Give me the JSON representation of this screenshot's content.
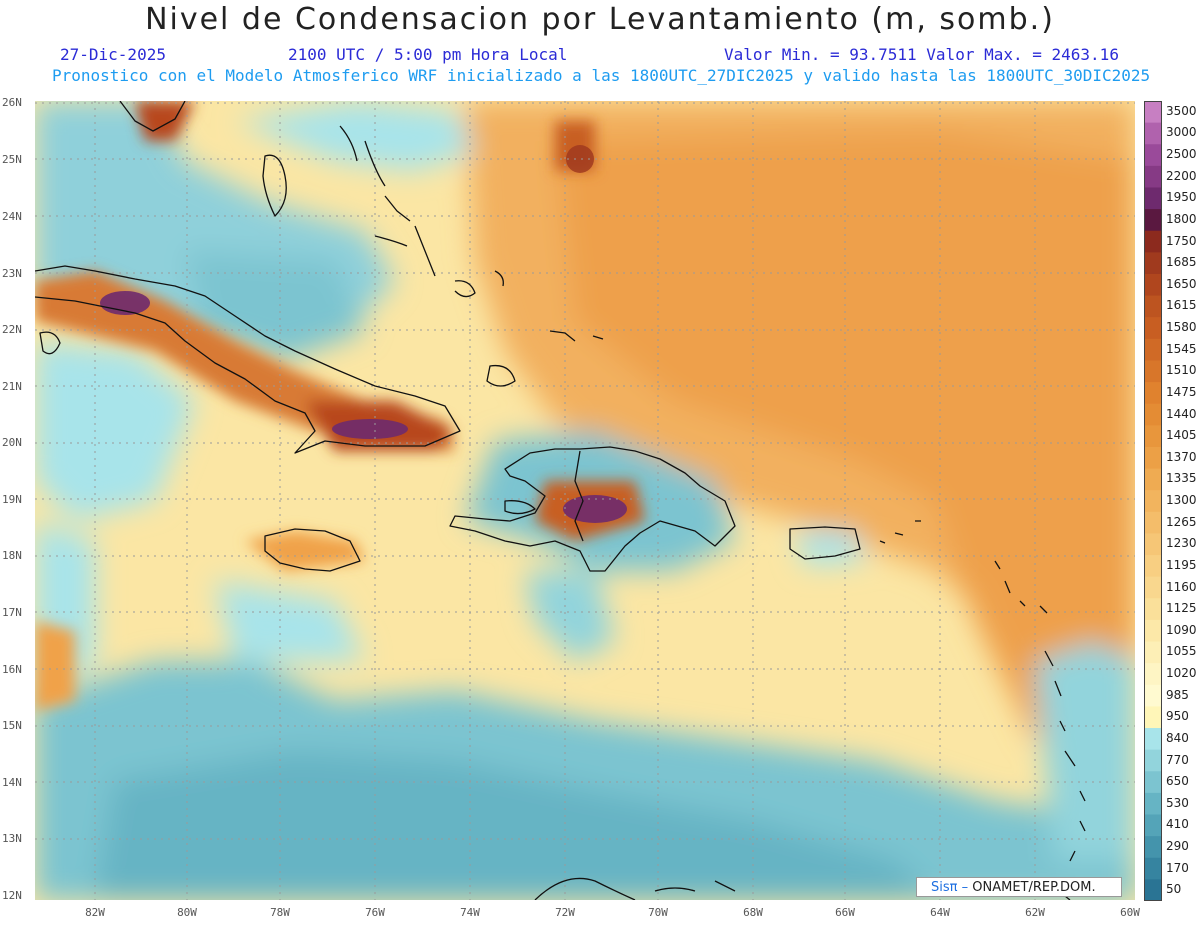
{
  "header": {
    "title": "Nivel de Condensacion por Levantamiento (m, somb.)",
    "date": "27-Dic-2025",
    "time": "2100 UTC / 5:00 pm Hora Local",
    "stats": "Valor Min. = 93.7511   Valor Max. = 2463.16",
    "model_line": "Pronostico con el Modelo Atmosferico WRF inicializado a las 1800UTC_27DIC2025 y valido hasta las  1800UTC_30DIC2025"
  },
  "map": {
    "lat_labels": [
      "26N",
      "25N",
      "24N",
      "23N",
      "22N",
      "21N",
      "20N",
      "19N",
      "18N",
      "17N",
      "16N",
      "15N",
      "14N",
      "13N",
      "12N"
    ],
    "lon_labels": [
      "82W",
      "80W",
      "78W",
      "76W",
      "74W",
      "72W",
      "70W",
      "68W",
      "66W",
      "64W",
      "62W",
      "60W"
    ],
    "credit": {
      "brand": "Sisπ –",
      "org": "ONAMET/REP.DOM."
    }
  },
  "colorbar": {
    "levels": [
      "3500",
      "3000",
      "2500",
      "2200",
      "1950",
      "1800",
      "1750",
      "1685",
      "1650",
      "1615",
      "1580",
      "1545",
      "1510",
      "1475",
      "1440",
      "1405",
      "1370",
      "1335",
      "1300",
      "1265",
      "1230",
      "1195",
      "1160",
      "1125",
      "1090",
      "1055",
      "1020",
      "985",
      "950",
      "840",
      "770",
      "650",
      "530",
      "410",
      "290",
      "170",
      "50"
    ],
    "colors": [
      "#c77fc2",
      "#b062ad",
      "#9a4a9a",
      "#863a85",
      "#6e2a6e",
      "#5a1840",
      "#8c2a1e",
      "#a03a1e",
      "#b0461e",
      "#bd5420",
      "#c85e22",
      "#d06a26",
      "#d8762a",
      "#e0822e",
      "#e48c34",
      "#e8963c",
      "#eca046",
      "#efab52",
      "#f2b45e",
      "#f4bd6a",
      "#f6c676",
      "#f8cf82",
      "#f9d78e",
      "#fae09a",
      "#fce8a8",
      "#fdefb6",
      "#fef5c4",
      "#fffad0",
      "#fff6b8",
      "#a8e4ea",
      "#92d4dc",
      "#7cc4d0",
      "#66b4c4",
      "#54a4b8",
      "#4494ac",
      "#3684a0",
      "#2a7494"
    ],
    "note": "one label per band, top to bottom"
  }
}
